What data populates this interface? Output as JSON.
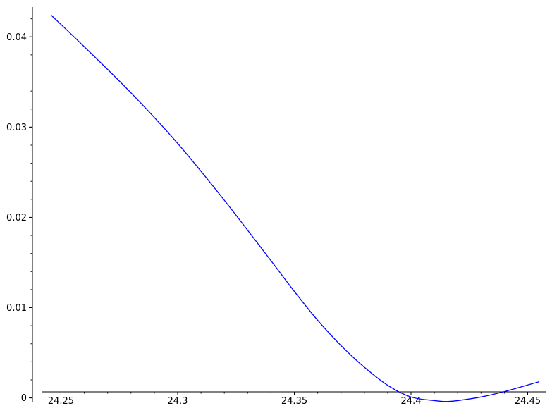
{
  "chart_data": {
    "type": "line",
    "title": "",
    "xlabel": "",
    "ylabel": "",
    "grid": false,
    "legend": "none",
    "xlim": [
      24.242,
      24.458
    ],
    "ylim": [
      -0.0005,
      0.0433
    ],
    "x_ticks": [
      {
        "value": 24.25,
        "label": "24.25"
      },
      {
        "value": 24.3,
        "label": "24.3"
      },
      {
        "value": 24.35,
        "label": "24.35"
      },
      {
        "value": 24.4,
        "label": "24.4"
      },
      {
        "value": 24.45,
        "label": "24.45"
      }
    ],
    "y_ticks": [
      {
        "value": 0,
        "label": "0"
      },
      {
        "value": 0.01,
        "label": "0.01"
      },
      {
        "value": 0.02,
        "label": "0.02"
      },
      {
        "value": 0.03,
        "label": "0.03"
      },
      {
        "value": 0.04,
        "label": "0.04"
      }
    ],
    "series": [
      {
        "color": "#0000ff",
        "x": [
          24.2458,
          24.26,
          24.28,
          24.3,
          24.32,
          24.34,
          24.35,
          24.36,
          24.37,
          24.38,
          24.39,
          24.4,
          24.41,
          24.415,
          24.42,
          24.43,
          24.44,
          24.455
        ],
        "y": [
          0.0424,
          0.0389,
          0.0338,
          0.0282,
          0.0219,
          0.0152,
          0.0118,
          0.0086,
          0.0058,
          0.0034,
          0.0014,
          0.0001,
          -0.0003,
          -0.0004,
          -0.0003,
          0.0001,
          0.0007,
          0.0018
        ]
      }
    ]
  }
}
